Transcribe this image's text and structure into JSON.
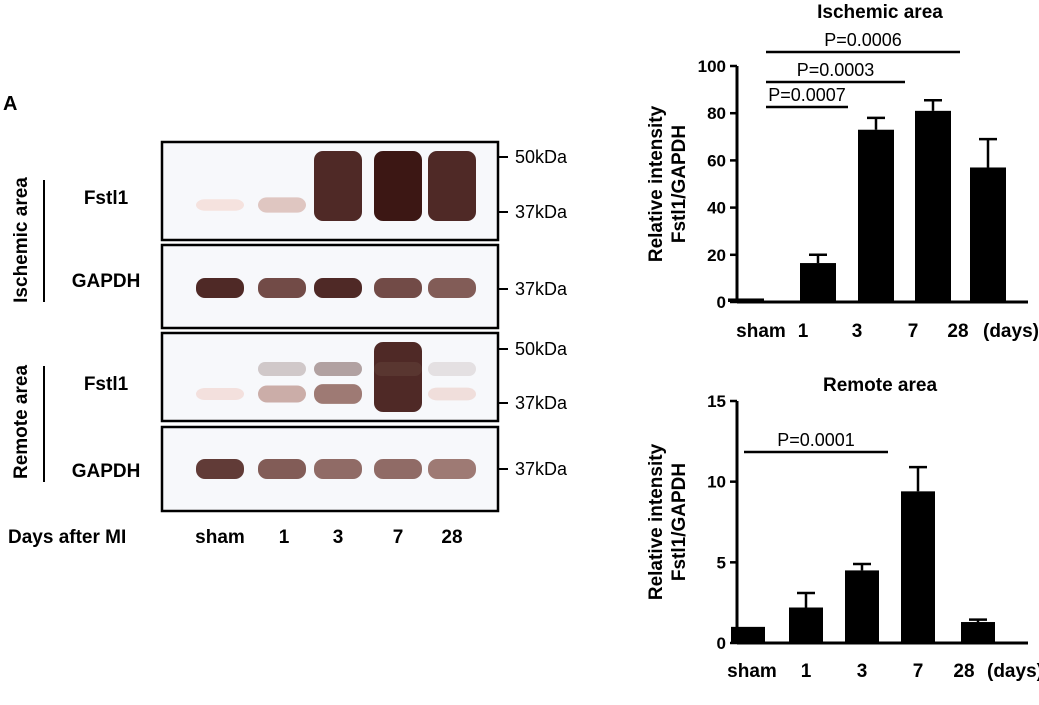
{
  "panel_letter": "A",
  "blot": {
    "regions": [
      {
        "key": "ischemic",
        "label": "Ischemic area"
      },
      {
        "key": "remote",
        "label": "Remote area"
      }
    ],
    "rows": [
      {
        "protein": "Fstl1",
        "region": "ischemic",
        "markers": [
          "50kDa",
          "37kDa"
        ],
        "bands": [
          0.1,
          0.38,
          0.95,
          1.0,
          0.95
        ]
      },
      {
        "protein": "GAPDH",
        "region": "ischemic",
        "markers": [
          "37kDa"
        ],
        "bands": [
          0.95,
          0.85,
          0.95,
          0.85,
          0.8
        ]
      },
      {
        "protein": "Fstl1",
        "region": "remote",
        "markers": [
          "50kDa",
          "37kDa"
        ],
        "bands": [
          0.15,
          0.5,
          0.7,
          0.95,
          0.2
        ]
      },
      {
        "protein": "GAPDH",
        "region": "remote",
        "markers": [
          "37kDa"
        ],
        "bands": [
          0.9,
          0.8,
          0.75,
          0.75,
          0.7
        ]
      }
    ],
    "xaxis_title": "Days after MI",
    "lanes": [
      "sham",
      "1",
      "3",
      "7",
      "28"
    ]
  },
  "chart_data": [
    {
      "type": "bar",
      "title": "Ischemic area",
      "ylabel_lines": [
        "Relative intensity",
        "Fstl1/GAPDH"
      ],
      "categories": [
        "sham",
        "1",
        "3",
        "7",
        "28"
      ],
      "x_unit": "(days)",
      "values": [
        1.5,
        16.5,
        73,
        81,
        57
      ],
      "errors": [
        0,
        3.5,
        5,
        4.5,
        12
      ],
      "ylim": [
        0,
        100
      ],
      "yticks": [
        0,
        20,
        40,
        60,
        80,
        100
      ],
      "significance": [
        {
          "from": 1,
          "to": 2,
          "label": "P=0.0007"
        },
        {
          "from": 1,
          "to": 3,
          "label": "P=0.0003"
        },
        {
          "from": 1,
          "to": 4,
          "label": "P=0.0006"
        }
      ]
    },
    {
      "type": "bar",
      "title": "Remote area",
      "ylabel_lines": [
        "Relative intensity",
        "Fstl1/GAPDH"
      ],
      "categories": [
        "sham",
        "1",
        "3",
        "7",
        "28"
      ],
      "x_unit": "(days)",
      "values": [
        1.0,
        2.2,
        4.5,
        9.4,
        1.3
      ],
      "errors": [
        0,
        0.9,
        0.4,
        1.5,
        0.15
      ],
      "ylim": [
        0,
        15
      ],
      "yticks": [
        0,
        5,
        10,
        15
      ],
      "significance": [
        {
          "from": 0,
          "to": 3,
          "label": "P=0.0001"
        }
      ]
    }
  ]
}
